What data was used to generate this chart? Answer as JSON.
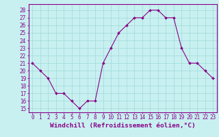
{
  "x": [
    0,
    1,
    2,
    3,
    4,
    5,
    6,
    7,
    8,
    9,
    10,
    11,
    12,
    13,
    14,
    15,
    16,
    17,
    18,
    19,
    20,
    21,
    22,
    23
  ],
  "y": [
    21,
    20,
    19,
    17,
    17,
    16,
    15,
    16,
    16,
    21,
    23,
    25,
    26,
    27,
    27,
    28,
    28,
    27,
    27,
    23,
    21,
    21,
    20,
    19
  ],
  "line_color": "#880088",
  "marker_color": "#880088",
  "bg_color": "#C8F0F0",
  "grid_color": "#A0D8D8",
  "xlabel": "Windchill (Refroidissement éolien,°C)",
  "ylabel_ticks": [
    15,
    16,
    17,
    18,
    19,
    20,
    21,
    22,
    23,
    24,
    25,
    26,
    27,
    28
  ],
  "ylim": [
    14.5,
    28.8
  ],
  "xlim": [
    -0.5,
    23.5
  ],
  "tick_fontsize": 5.5,
  "xlabel_fontsize": 6.8,
  "tick_color": "#880088",
  "border_color": "#880088"
}
